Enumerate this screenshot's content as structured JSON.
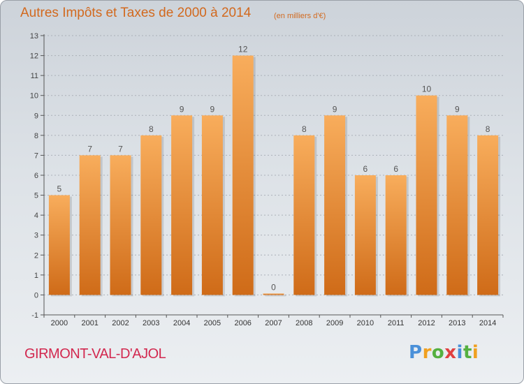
{
  "page": {
    "title": "Autres Impôts et Taxes de 2000 à 2014",
    "subtitle": "(en milliers d'€)",
    "commune": "GIRMONT-VAL-D'AJOL",
    "logo_text": "Proxiti",
    "colors": {
      "title": "#d2691e",
      "commune": "#d2284f",
      "bar_light": "#f8ad5c",
      "bar_dark": "#cf6b18",
      "axis": "#555555",
      "grid": "#aab0b8"
    }
  },
  "chart_data": {
    "type": "bar",
    "categories": [
      "2000",
      "2001",
      "2002",
      "2003",
      "2004",
      "2005",
      "2006",
      "2007",
      "2008",
      "2009",
      "2010",
      "2011",
      "2012",
      "2013",
      "2014"
    ],
    "values": [
      5,
      7,
      7,
      8,
      9,
      9,
      12,
      0,
      8,
      9,
      6,
      6,
      10,
      9,
      8
    ],
    "data_labels": [
      "5",
      "7",
      "7",
      "8",
      "9",
      "9",
      "12",
      "0",
      "8",
      "9",
      "6",
      "6",
      "10",
      "9",
      "8"
    ],
    "y_ticks": [
      -1,
      0,
      1,
      2,
      3,
      4,
      5,
      6,
      7,
      8,
      9,
      10,
      11,
      12,
      13
    ],
    "ylim": [
      -1,
      13
    ],
    "grid": true,
    "legend": "none"
  }
}
